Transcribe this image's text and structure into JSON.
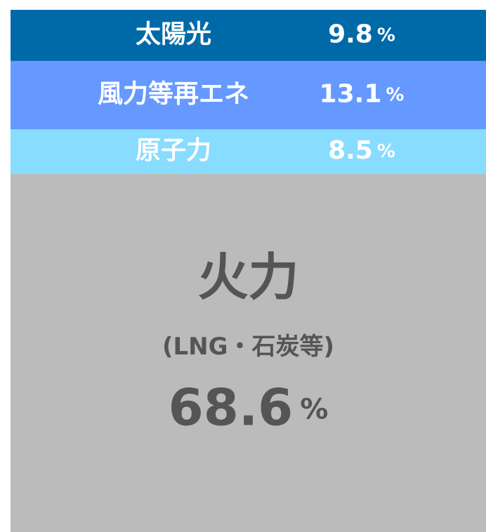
{
  "chart_data": {
    "type": "stacked-column",
    "categories": [
      "太陽光",
      "風力等再エネ",
      "原子力",
      "火力"
    ],
    "values": [
      9.8,
      13.1,
      8.5,
      68.6
    ],
    "colors": [
      "#006aa9",
      "#6699ff",
      "#88dcff",
      "#bbbbbb"
    ],
    "unit": "%",
    "annotation": "(LNG・石炭等)"
  }
}
